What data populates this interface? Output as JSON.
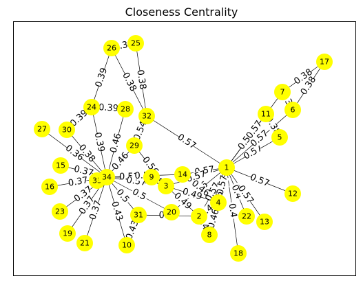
{
  "title": "Closeness Centrality",
  "node_color": "#ffff00",
  "nodes": [
    {
      "id": "1"
    },
    {
      "id": "2"
    },
    {
      "id": "3"
    },
    {
      "id": "4"
    },
    {
      "id": "5"
    },
    {
      "id": "6"
    },
    {
      "id": "7"
    },
    {
      "id": "8"
    },
    {
      "id": "9"
    },
    {
      "id": "10"
    },
    {
      "id": "11"
    },
    {
      "id": "12"
    },
    {
      "id": "13"
    },
    {
      "id": "14"
    },
    {
      "id": "15"
    },
    {
      "id": "16"
    },
    {
      "id": "17"
    },
    {
      "id": "18"
    },
    {
      "id": "19"
    },
    {
      "id": "20"
    },
    {
      "id": "21"
    },
    {
      "id": "22"
    },
    {
      "id": "23"
    },
    {
      "id": "24"
    },
    {
      "id": "25"
    },
    {
      "id": "26"
    },
    {
      "id": "27"
    },
    {
      "id": "28"
    },
    {
      "id": "29"
    },
    {
      "id": "30"
    },
    {
      "id": "31"
    },
    {
      "id": "32"
    },
    {
      "id": "33"
    },
    {
      "id": "34"
    }
  ],
  "edges": [
    {
      "source": "25",
      "target": "26",
      "label": "0.38"
    },
    {
      "source": "26",
      "target": "32",
      "label": "0.38"
    },
    {
      "source": "25",
      "target": "32",
      "label": "0.38"
    },
    {
      "source": "26",
      "target": "24",
      "label": "0.39"
    },
    {
      "source": "24",
      "target": "28",
      "label": "0.39"
    },
    {
      "source": "28",
      "target": "34",
      "label": "0.46"
    },
    {
      "source": "24",
      "target": "34",
      "label": "0.39"
    },
    {
      "source": "24",
      "target": "30",
      "label": "0.39"
    },
    {
      "source": "30",
      "target": "34",
      "label": "0.38"
    },
    {
      "source": "27",
      "target": "34",
      "label": "0.36"
    },
    {
      "source": "15",
      "target": "34",
      "label": "0.37"
    },
    {
      "source": "16",
      "target": "34",
      "label": "0.37"
    },
    {
      "source": "23",
      "target": "34",
      "label": "0.37"
    },
    {
      "source": "19",
      "target": "34",
      "label": "0.37"
    },
    {
      "source": "21",
      "target": "34",
      "label": "0.37"
    },
    {
      "source": "29",
      "target": "34",
      "label": "0.46"
    },
    {
      "source": "32",
      "target": "29",
      "label": "0.54"
    },
    {
      "source": "29",
      "target": "3",
      "label": "0.56"
    },
    {
      "source": "32",
      "target": "1",
      "label": "0.57"
    },
    {
      "source": "9",
      "target": "34",
      "label": "0.52"
    },
    {
      "source": "9",
      "target": "3",
      "label": "0.52"
    },
    {
      "source": "3",
      "target": "34",
      "label": "0.57"
    },
    {
      "source": "14",
      "target": "34",
      "label": "0.57"
    },
    {
      "source": "14",
      "target": "1",
      "label": "0.57"
    },
    {
      "source": "3",
      "target": "1",
      "label": "0.57"
    },
    {
      "source": "34",
      "target": "20",
      "label": "0.5"
    },
    {
      "source": "34",
      "target": "31",
      "label": "0.5"
    },
    {
      "source": "34",
      "target": "10",
      "label": "0.43"
    },
    {
      "source": "31",
      "target": "10",
      "label": "0.43"
    },
    {
      "source": "31",
      "target": "2",
      "label": "0.49"
    },
    {
      "source": "20",
      "target": "1",
      "label": "0.56"
    },
    {
      "source": "2",
      "target": "1",
      "label": "0.57"
    },
    {
      "source": "4",
      "target": "1",
      "label": "0.57"
    },
    {
      "source": "8",
      "target": "1",
      "label": "0.46"
    },
    {
      "source": "18",
      "target": "1",
      "label": "0.4"
    },
    {
      "source": "22",
      "target": "1",
      "label": "0.4"
    },
    {
      "source": "13",
      "target": "1",
      "label": "0.57"
    },
    {
      "source": "12",
      "target": "1",
      "label": "0.57"
    },
    {
      "source": "11",
      "target": "1",
      "label": "0.57"
    },
    {
      "source": "7",
      "target": "1",
      "label": "0.57"
    },
    {
      "source": "5",
      "target": "1",
      "label": "0.57"
    },
    {
      "source": "6",
      "target": "1",
      "label": "0.57"
    },
    {
      "source": "7",
      "target": "17",
      "label": "0.38"
    },
    {
      "source": "6",
      "target": "17",
      "label": "0.38"
    },
    {
      "source": "11",
      "target": "5",
      "label": "0.38"
    },
    {
      "source": "7",
      "target": "6",
      "label": "0.38"
    },
    {
      "source": "4",
      "target": "2",
      "label": "0.49"
    },
    {
      "source": "4",
      "target": "8",
      "label": "0.46"
    },
    {
      "source": "4",
      "target": "14",
      "label": "0.46"
    },
    {
      "source": "4",
      "target": "3",
      "label": "0.49"
    },
    {
      "source": "2",
      "target": "8",
      "label": "0.49"
    },
    {
      "source": "2",
      "target": "3",
      "label": "0.49"
    }
  ]
}
